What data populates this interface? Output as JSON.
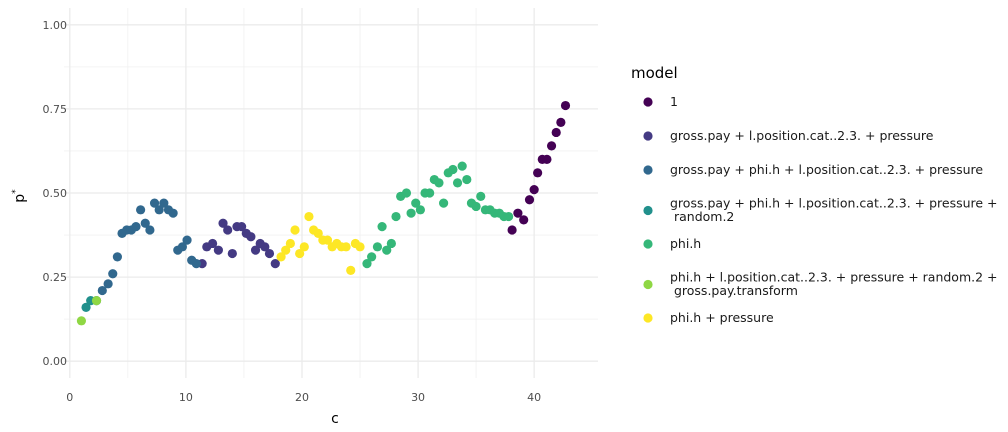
{
  "chart_data": {
    "type": "scatter",
    "xlabel": "c",
    "ylabel": "p",
    "ylabel_superscript": "*",
    "xlim": [
      -0.5,
      45.5
    ],
    "ylim": [
      -0.05,
      1.05
    ],
    "x_ticks": [
      0,
      10,
      20,
      30,
      40
    ],
    "x_tick_labels": [
      "0",
      "10",
      "20",
      "30",
      "40"
    ],
    "y_ticks": [
      0,
      0.25,
      0.5,
      0.75,
      1
    ],
    "y_tick_labels": [
      "0.00",
      "0.25",
      "0.50",
      "0.75",
      "1.00"
    ],
    "grid": true,
    "legend": {
      "title": "model",
      "position": "right",
      "entries": [
        {
          "lines": [
            "1"
          ],
          "color": "#440154"
        },
        {
          "lines": [
            "gross.pay + l.position.cat..2.3. + pressure"
          ],
          "color": "#443A83"
        },
        {
          "lines": [
            "gross.pay + phi.h + l.position.cat..2.3. + pressure"
          ],
          "color": "#31688E"
        },
        {
          "lines": [
            "gross.pay + phi.h + l.position.cat..2.3. + pressure +",
            " random.2"
          ],
          "color": "#21908C"
        },
        {
          "lines": [
            "phi.h"
          ],
          "color": "#35B779"
        },
        {
          "lines": [
            "phi.h + l.position.cat..2.3. + pressure + random.2 +",
            " gross.pay.transform"
          ],
          "color": "#8FD744"
        },
        {
          "lines": [
            "phi.h + pressure"
          ],
          "color": "#FDE725"
        }
      ]
    },
    "series": [
      {
        "name": "1",
        "color": "#440154",
        "x": [
          38.1,
          38.6,
          39.1,
          39.6,
          40.0,
          40.3,
          40.7,
          41.1,
          41.5,
          41.9,
          42.3,
          42.7
        ],
        "y": [
          0.39,
          0.44,
          0.42,
          0.48,
          0.51,
          0.56,
          0.6,
          0.6,
          0.64,
          0.68,
          0.71,
          0.76
        ]
      },
      {
        "name": "gross.pay + l.position.cat..2.3. + pressure",
        "color": "#443A83",
        "x": [
          11.4,
          11.8,
          12.3,
          12.8,
          13.2,
          13.6,
          14.0,
          14.4,
          14.8,
          15.2,
          15.6,
          16.0,
          16.4,
          16.8,
          17.2,
          17.7
        ],
        "y": [
          0.29,
          0.34,
          0.35,
          0.33,
          0.41,
          0.39,
          0.32,
          0.4,
          0.4,
          0.38,
          0.37,
          0.33,
          0.35,
          0.34,
          0.32,
          0.29
        ]
      },
      {
        "name": "gross.pay + phi.h + l.position.cat..2.3. + pressure",
        "color": "#31688E",
        "x": [
          2.3,
          2.8,
          3.3,
          3.7,
          4.1,
          4.5,
          4.9,
          5.3,
          5.7,
          6.1,
          6.5,
          6.9,
          7.3,
          7.7,
          8.1,
          8.5,
          8.9,
          9.3,
          9.7,
          10.1,
          10.5,
          10.9
        ],
        "y": [
          0.18,
          0.21,
          0.23,
          0.26,
          0.31,
          0.38,
          0.39,
          0.39,
          0.4,
          0.45,
          0.41,
          0.39,
          0.47,
          0.45,
          0.47,
          0.45,
          0.44,
          0.33,
          0.34,
          0.36,
          0.3,
          0.29
        ]
      },
      {
        "name": "gross.pay + phi.h + l.position.cat..2.3. + pressure + random.2",
        "color": "#21908C",
        "x": [
          1.4,
          1.8
        ],
        "y": [
          0.16,
          0.18
        ]
      },
      {
        "name": "phi.h",
        "color": "#35B779",
        "x": [
          25.6,
          26.0,
          26.5,
          26.9,
          27.3,
          27.7,
          28.1,
          28.5,
          29.0,
          29.4,
          29.8,
          30.2,
          30.6,
          31.0,
          31.4,
          31.8,
          32.2,
          32.6,
          33.0,
          33.4,
          33.8,
          34.2,
          34.6,
          35.0,
          35.4,
          35.8,
          36.2,
          36.6,
          37.0,
          37.4,
          37.8
        ],
        "y": [
          0.29,
          0.31,
          0.34,
          0.4,
          0.33,
          0.35,
          0.43,
          0.49,
          0.5,
          0.44,
          0.47,
          0.45,
          0.5,
          0.5,
          0.54,
          0.53,
          0.47,
          0.56,
          0.57,
          0.53,
          0.58,
          0.54,
          0.47,
          0.46,
          0.49,
          0.45,
          0.45,
          0.44,
          0.44,
          0.43,
          0.43
        ]
      },
      {
        "name": "phi.h + l.position.cat..2.3. + pressure + random.2 + gross.pay.transform",
        "color": "#8FD744",
        "x": [
          1.0,
          2.3
        ],
        "y": [
          0.12,
          0.18
        ]
      },
      {
        "name": "phi.h + pressure",
        "color": "#FDE725",
        "x": [
          18.2,
          18.6,
          19.0,
          19.4,
          19.8,
          20.2,
          20.6,
          21.0,
          21.4,
          21.8,
          22.2,
          22.6,
          23.0,
          23.4,
          23.8,
          24.2,
          24.6,
          25.0
        ],
        "y": [
          0.31,
          0.33,
          0.35,
          0.39,
          0.32,
          0.34,
          0.43,
          0.39,
          0.38,
          0.36,
          0.36,
          0.34,
          0.35,
          0.34,
          0.34,
          0.27,
          0.35,
          0.34
        ]
      }
    ]
  }
}
